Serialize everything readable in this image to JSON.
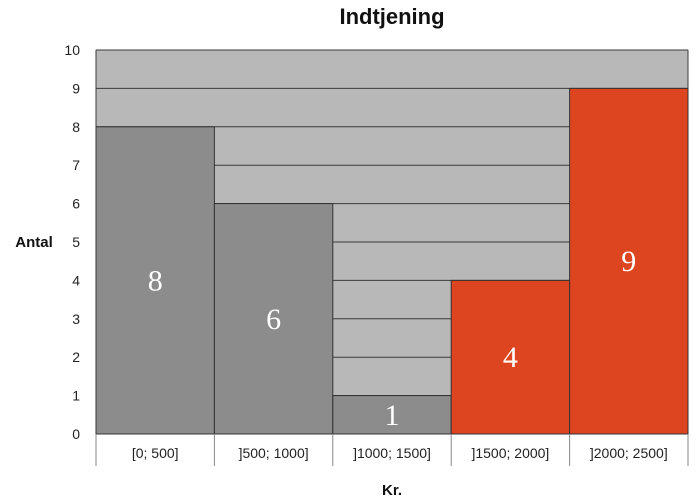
{
  "chart_data": {
    "type": "bar",
    "title": "Indtjening",
    "xlabel": "Kr.",
    "ylabel": "Antal",
    "categories": [
      "[0; 500]",
      "]500; 1000]",
      "]1000; 1500]",
      "]1500; 2000]",
      "]2000; 2500]"
    ],
    "values": [
      8,
      6,
      1,
      4,
      9
    ],
    "data_labels": [
      "8",
      "6",
      "1",
      "4",
      "9"
    ],
    "ylim": [
      0,
      10
    ],
    "yticks": [
      "0",
      "1",
      "2",
      "3",
      "4",
      "5",
      "6",
      "7",
      "8",
      "9",
      "10"
    ],
    "grid": true,
    "colors": {
      "plot_background": "#b8b8b8",
      "gridline": "#3a3a3a",
      "bar_gray": "#8c8c8c",
      "bar_red": "#dd4420",
      "bar_outline": "#333333"
    },
    "bar_colors": [
      "gray",
      "gray",
      "gray",
      "red",
      "red"
    ]
  }
}
